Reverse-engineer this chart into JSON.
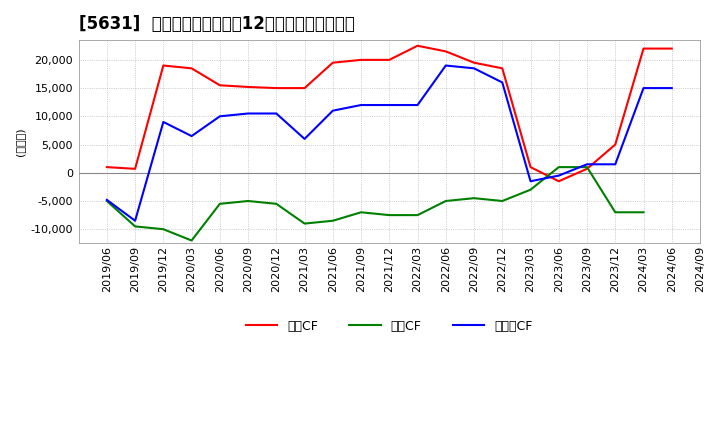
{
  "title": "[5631]  キャッシュフローの12か月移動合計の推移",
  "ylabel": "(百万円)",
  "ylim": [
    -12500,
    23500
  ],
  "yticks": [
    -10000,
    -5000,
    0,
    5000,
    10000,
    15000,
    20000
  ],
  "dates": [
    "2019/06",
    "2019/09",
    "2019/12",
    "2020/03",
    "2020/06",
    "2020/09",
    "2020/12",
    "2021/03",
    "2021/06",
    "2021/09",
    "2021/12",
    "2022/03",
    "2022/06",
    "2022/09",
    "2022/12",
    "2023/03",
    "2023/06",
    "2023/09",
    "2023/12",
    "2024/03",
    "2024/06",
    "2024/09"
  ],
  "operating_cf": [
    1000,
    700,
    19000,
    18500,
    15500,
    15200,
    15000,
    15000,
    19500,
    20000,
    20000,
    22500,
    21500,
    19500,
    18500,
    1000,
    -1500,
    700,
    5000,
    22000,
    22000,
    null
  ],
  "investing_cf": [
    -5000,
    -9500,
    -10000,
    -12000,
    -5500,
    -5000,
    -5500,
    -9000,
    -8500,
    -7000,
    -7500,
    -7500,
    -5000,
    -4500,
    -5000,
    -3000,
    1000,
    1000,
    -7000,
    -7000,
    null,
    null
  ],
  "free_cf": [
    -4800,
    -8500,
    9000,
    6500,
    10000,
    10500,
    10500,
    6000,
    11000,
    12000,
    12000,
    12000,
    19000,
    18500,
    16000,
    -1500,
    -500,
    1500,
    1500,
    15000,
    15000,
    null
  ],
  "operating_color": "#ff0000",
  "investing_color": "#008000",
  "free_color": "#0000ff",
  "background_color": "#ffffff",
  "plot_bg_color": "#ffffff",
  "grid_color": "#aaaaaa",
  "title_fontsize": 12,
  "axis_fontsize": 8,
  "legend_labels": [
    "営業CF",
    "投資CF",
    "フリーCF"
  ]
}
